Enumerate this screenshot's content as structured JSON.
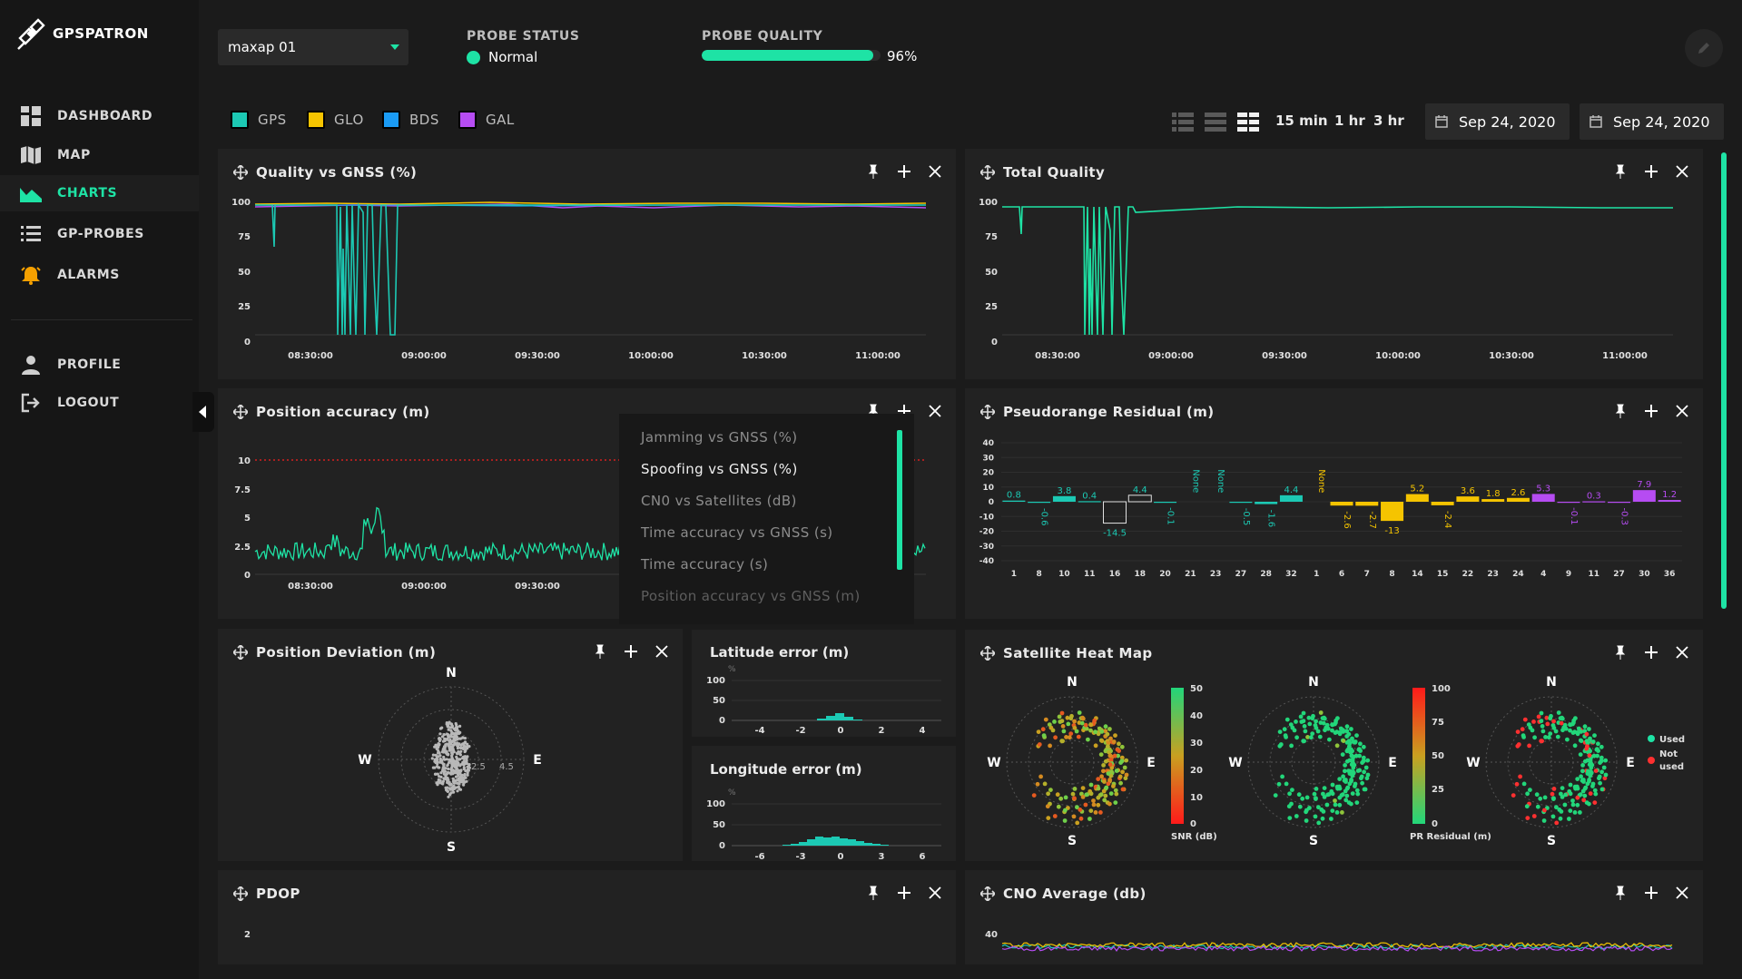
{
  "brand": {
    "name": "GPSPATRON"
  },
  "sidebar": {
    "items": [
      {
        "label": "DASHBOARD",
        "icon": "grid-icon"
      },
      {
        "label": "MAP",
        "icon": "map-icon"
      },
      {
        "label": "CHARTS",
        "icon": "chart-icon",
        "active": true
      },
      {
        "label": "GP-PROBES",
        "icon": "list-icon"
      },
      {
        "label": "ALARMS",
        "icon": "bell-icon"
      }
    ],
    "bottom_items": [
      {
        "label": "PROFILE",
        "icon": "user-icon"
      },
      {
        "label": "LOGOUT",
        "icon": "logout-icon"
      }
    ]
  },
  "header": {
    "probe_select": "maxap 01",
    "probe_status_label": "PROBE STATUS",
    "probe_status_value": "Normal",
    "probe_quality_label": "PROBE QUALITY",
    "probe_quality_value": "96%",
    "probe_quality_fraction": 0.96
  },
  "filters": {
    "gnss": [
      {
        "label": "GPS",
        "color": "#1cc9b4"
      },
      {
        "label": "GLO",
        "color": "#f5c400"
      },
      {
        "label": "BDS",
        "color": "#1a9bf5"
      },
      {
        "label": "GAL",
        "color": "#b64cf2"
      }
    ],
    "time_ranges": [
      "15 min",
      "1 hr",
      "3 hr"
    ],
    "date_from": "Sep 24, 2020",
    "date_to": "Sep 24, 2020"
  },
  "cards": {
    "quality_vs_gnss": {
      "title": "Quality vs GNSS (%)",
      "yticks": [
        "100",
        "75",
        "50",
        "25",
        "0"
      ],
      "xticks": [
        "08:30:00",
        "09:00:00",
        "09:30:00",
        "10:00:00",
        "10:30:00",
        "11:00:00"
      ]
    },
    "total_quality": {
      "title": "Total Quality",
      "yticks": [
        "100",
        "75",
        "50",
        "25",
        "0"
      ],
      "xticks": [
        "08:30:00",
        "09:00:00",
        "09:30:00",
        "10:00:00",
        "10:30:00",
        "11:00:00"
      ]
    },
    "position_accuracy": {
      "title": "Position accuracy (m)",
      "yticks": [
        "10",
        "7.5",
        "5",
        "2.5",
        "0"
      ],
      "xticks": [
        "08:30:00",
        "09:00:00",
        "09:30:00"
      ]
    },
    "pseudorange_residual": {
      "title": "Pseudorange Residual (m)"
    },
    "position_deviation": {
      "title": "Position Deviation (m)",
      "compass": [
        "N",
        "E",
        "S",
        "W"
      ],
      "ring_labels": [
        "2.5",
        "4.5"
      ]
    },
    "latitude_error": {
      "title": "Latitude error (m)",
      "yticks": [
        "100",
        "50",
        "0"
      ],
      "xticks": [
        "-4",
        "-2",
        "0",
        "2",
        "4"
      ],
      "unit": "%"
    },
    "longitude_error": {
      "title": "Longitude error (m)",
      "yticks": [
        "100",
        "50",
        "0"
      ],
      "xticks": [
        "-6",
        "-3",
        "0",
        "3",
        "6"
      ],
      "unit": "%"
    },
    "satellite_heat_map": {
      "title": "Satellite Heat Map",
      "compass": [
        "N",
        "E",
        "S",
        "W"
      ],
      "snr_scale": [
        "50",
        "40",
        "30",
        "20",
        "10",
        "0"
      ],
      "snr_label": "SNR (dB)",
      "pr_scale": [
        "100",
        "75",
        "50",
        "25",
        "0"
      ],
      "pr_label": "PR Residual (m)",
      "legend_used": "Used",
      "legend_not_used_1": "Not",
      "legend_not_used_2": "used"
    },
    "pdop": {
      "title": "PDOP",
      "ytick": "2"
    },
    "cno_average": {
      "title": "CNO Average (db)",
      "ytick": "40"
    }
  },
  "chart_dropdown": {
    "items": [
      "Jamming vs GNSS (%)",
      "Spoofing vs GNSS (%)",
      "CN0 vs Satellites (dB)",
      "Time accuracy vs GNSS (s)",
      "Time accuracy (s)",
      "Position accuracy vs GNSS (m)"
    ],
    "highlighted": 1
  },
  "chart_data": [
    {
      "type": "bar",
      "title": "Pseudorange Residual (m)",
      "ylim": [
        -40,
        40
      ],
      "yticks": [
        40,
        30,
        20,
        10,
        0,
        -10,
        -20,
        -30,
        -40
      ],
      "categories": [
        "1",
        "8",
        "10",
        "11",
        "16",
        "18",
        "20",
        "21",
        "23",
        "27",
        "28",
        "32",
        "1",
        "6",
        "7",
        "8",
        "14",
        "15",
        "22",
        "23",
        "24",
        "4",
        "9",
        "11",
        "27",
        "30",
        "36"
      ],
      "values": [
        0.8,
        -0.6,
        3.8,
        0.4,
        -14.5,
        4.4,
        -0.1,
        null,
        null,
        -0.5,
        -1.6,
        4.4,
        null,
        -2.6,
        -2.7,
        -13,
        5.2,
        -2.4,
        3.6,
        1.8,
        2.6,
        5.3,
        -0.1,
        0.3,
        -0.3,
        7.9,
        1.2
      ],
      "labels": [
        "0.8",
        "-0.6",
        "3.8",
        "0.4",
        "-14.5",
        "4.4",
        "-0.1",
        "None",
        "None",
        "-0.5",
        "-1.6",
        "4.4",
        "None",
        "-2.6",
        "-2.7",
        "-13",
        "5.2",
        "-2.4",
        "3.6",
        "1.8",
        "2.6",
        "5.3",
        "-0.1",
        "0.3",
        "-0.3",
        "7.9",
        "1.2"
      ],
      "system": [
        "GPS",
        "GPS",
        "GPS",
        "GPS",
        "GPS",
        "GPS",
        "GPS",
        "GPS",
        "GPS",
        "GPS",
        "GPS",
        "GPS",
        "GLO",
        "GLO",
        "GLO",
        "GLO",
        "GLO",
        "GLO",
        "GLO",
        "GLO",
        "GLO",
        "GAL",
        "GAL",
        "GAL",
        "GAL",
        "GAL",
        "GAL"
      ],
      "hollow": [
        4,
        5
      ]
    },
    {
      "type": "line",
      "title": "Total Quality",
      "ylim": [
        0,
        100
      ],
      "x": [
        "08:15",
        "08:20",
        "08:22",
        "08:40",
        "08:41",
        "08:42",
        "08:44",
        "08:45",
        "08:46",
        "08:47",
        "08:48",
        "08:50",
        "08:52",
        "08:53",
        "08:55",
        "09:00",
        "10:00",
        "11:00",
        "11:20"
      ],
      "values": [
        97,
        97,
        75,
        97,
        0,
        97,
        0,
        97,
        0,
        97,
        0,
        90,
        0,
        97,
        97,
        97,
        97,
        97,
        96
      ]
    }
  ]
}
